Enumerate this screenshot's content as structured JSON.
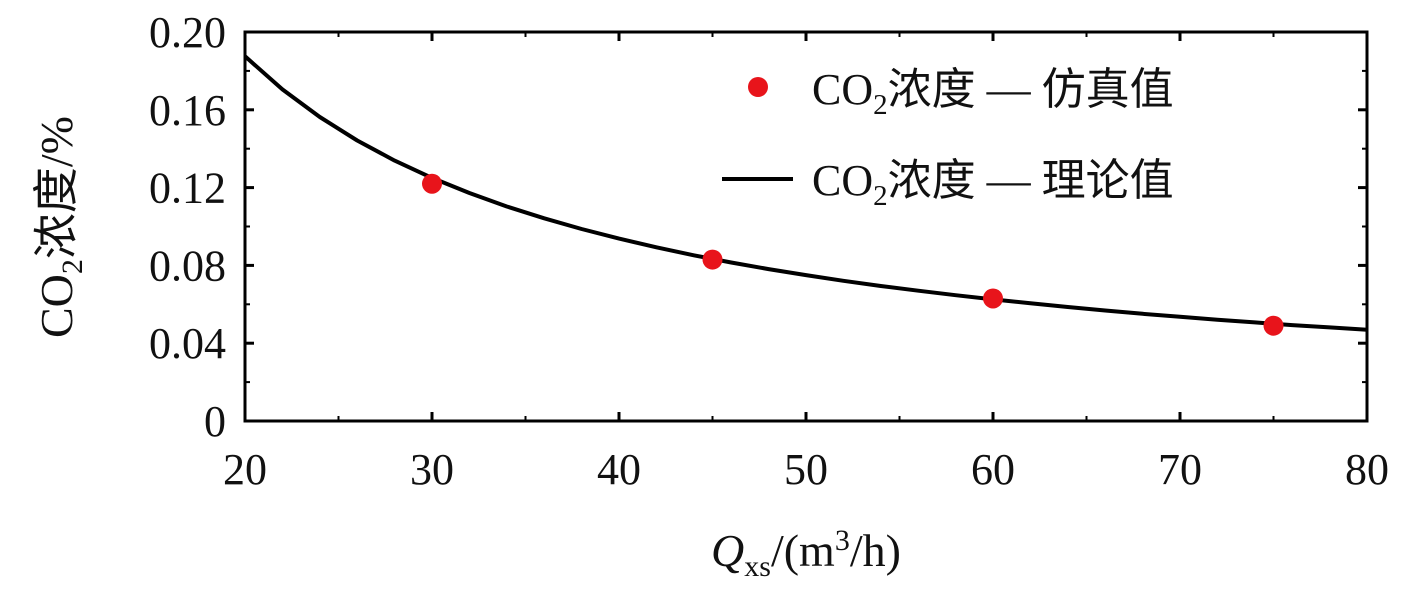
{
  "chart_data": {
    "type": "line",
    "xlabel": {
      "var": "Q",
      "sub": "xs",
      "rest_pre": "/(m",
      "sup": "3",
      "rest_post": "/h)"
    },
    "ylabel": {
      "pre": "CO",
      "sub": "2",
      "post": "浓度/%"
    },
    "xlim": [
      20,
      80
    ],
    "ylim": [
      0,
      0.2
    ],
    "x_ticks": [
      20,
      30,
      40,
      50,
      60,
      70,
      80
    ],
    "x_tick_labels": [
      "20",
      "30",
      "40",
      "50",
      "60",
      "70",
      "80"
    ],
    "y_ticks": [
      0,
      0.04,
      0.08,
      0.12,
      0.16,
      0.2
    ],
    "y_tick_labels": [
      "0",
      "0.04",
      "0.08",
      "0.12",
      "0.16",
      "0.20"
    ],
    "grid": false,
    "legend_position": "top-right",
    "series": [
      {
        "kind": "scatter",
        "label": {
          "pre": "CO",
          "sub": "2",
          "post": "浓度 — 仿真值"
        },
        "color": "#e8141b",
        "points": [
          {
            "x": 30,
            "y": 0.122
          },
          {
            "x": 45,
            "y": 0.083
          },
          {
            "x": 60,
            "y": 0.063
          },
          {
            "x": 75,
            "y": 0.049
          }
        ]
      },
      {
        "kind": "line",
        "label": {
          "pre": "CO",
          "sub": "2",
          "post": "浓度 — 理论值"
        },
        "color": "#000000",
        "points": [
          {
            "x": 20,
            "y": 0.1875
          },
          {
            "x": 22,
            "y": 0.1705
          },
          {
            "x": 24,
            "y": 0.1563
          },
          {
            "x": 26,
            "y": 0.1442
          },
          {
            "x": 28,
            "y": 0.1339
          },
          {
            "x": 30,
            "y": 0.125
          },
          {
            "x": 32,
            "y": 0.1172
          },
          {
            "x": 34,
            "y": 0.1103
          },
          {
            "x": 36,
            "y": 0.1042
          },
          {
            "x": 38,
            "y": 0.0987
          },
          {
            "x": 40,
            "y": 0.0938
          },
          {
            "x": 42,
            "y": 0.0893
          },
          {
            "x": 44,
            "y": 0.0852
          },
          {
            "x": 46,
            "y": 0.0815
          },
          {
            "x": 48,
            "y": 0.0781
          },
          {
            "x": 50,
            "y": 0.075
          },
          {
            "x": 52,
            "y": 0.0721
          },
          {
            "x": 54,
            "y": 0.0694
          },
          {
            "x": 56,
            "y": 0.067
          },
          {
            "x": 58,
            "y": 0.0647
          },
          {
            "x": 60,
            "y": 0.0625
          },
          {
            "x": 62,
            "y": 0.0605
          },
          {
            "x": 64,
            "y": 0.0586
          },
          {
            "x": 66,
            "y": 0.0568
          },
          {
            "x": 68,
            "y": 0.0551
          },
          {
            "x": 70,
            "y": 0.0536
          },
          {
            "x": 72,
            "y": 0.0521
          },
          {
            "x": 74,
            "y": 0.0507
          },
          {
            "x": 76,
            "y": 0.0493
          },
          {
            "x": 78,
            "y": 0.0481
          },
          {
            "x": 80,
            "y": 0.0469
          }
        ]
      }
    ]
  }
}
